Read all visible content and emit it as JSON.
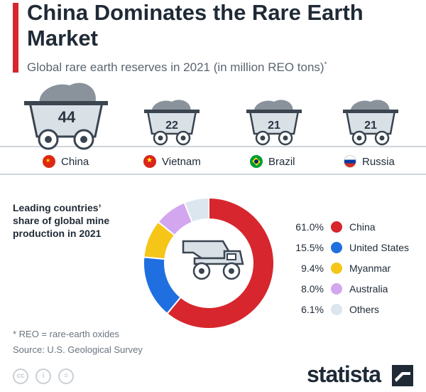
{
  "header": {
    "title": "China Dominates the Rare Earth Market",
    "subtitle": "Global rare earth reserves in 2021 (in million REO tons)",
    "subtitle_marker": "*"
  },
  "reserves": [
    {
      "country": "China",
      "value": "44",
      "flag": "china-flag"
    },
    {
      "country": "Vietnam",
      "value": "22",
      "flag": "vietnam-flag"
    },
    {
      "country": "Brazil",
      "value": "21",
      "flag": "brazil-flag"
    },
    {
      "country": "Russia",
      "value": "21",
      "flag": "russia-flag"
    }
  ],
  "production": {
    "title": "Leading countries’ share of global mine production in 2021",
    "entries": [
      {
        "label": "China",
        "pct": "61.0%",
        "color": "#d7262d"
      },
      {
        "label": "United States",
        "pct": "15.5%",
        "color": "#1f6fe0"
      },
      {
        "label": "Myanmar",
        "pct": "9.4%",
        "color": "#f5c518"
      },
      {
        "label": "Australia",
        "pct": "8.0%",
        "color": "#d3a6f0"
      },
      {
        "label": "Others",
        "pct": "6.1%",
        "color": "#dce6ee"
      }
    ]
  },
  "footer": {
    "note": "* REO = rare-earth oxides",
    "source": "Source: U.S. Geological Survey",
    "brand": "statista",
    "license_icons": [
      "cc-icon",
      "attribution-icon",
      "no-derivatives-icon"
    ]
  },
  "chart_data": [
    {
      "type": "bar",
      "title": "Global rare earth reserves in 2021 (in million REO tons)",
      "categories": [
        "China",
        "Vietnam",
        "Brazil",
        "Russia"
      ],
      "values": [
        44,
        22,
        21,
        21
      ]
    },
    {
      "type": "pie",
      "title": "Leading countries’ share of global mine production in 2021",
      "categories": [
        "China",
        "United States",
        "Myanmar",
        "Australia",
        "Others"
      ],
      "values": [
        61.0,
        15.5,
        9.4,
        8.0,
        6.1
      ],
      "colors": [
        "#d7262d",
        "#1f6fe0",
        "#f5c518",
        "#d3a6f0",
        "#dce6ee"
      ],
      "style": "donut"
    }
  ]
}
